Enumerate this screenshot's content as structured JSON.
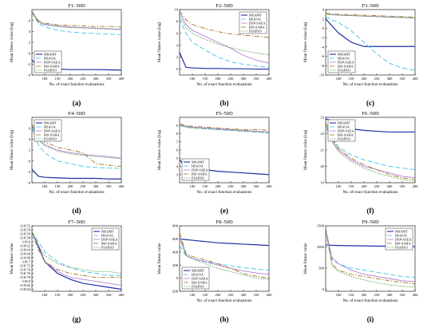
{
  "figure": {
    "letters": [
      "(a)",
      "(b)",
      "(c)",
      "(d)",
      "(e)",
      "(f)",
      "(g)",
      "(h)",
      "(i)"
    ],
    "legend_labels": [
      "MSAMT",
      "HSAOA",
      "DSP-SAEA",
      "BiS-SAHA",
      "FSAPSO"
    ],
    "series_colors": [
      "#1f2fa8",
      "#3fc2e8",
      "#b07fd8",
      "#a0781f",
      "#4a9a4a"
    ],
    "series_dash": [
      "",
      "6,3",
      "",
      "6,2,1.5,2",
      "1.5,1.5"
    ]
  },
  "chart_data": [
    {
      "type": "line",
      "title": "F1–50D",
      "xlabel": "No. of exact function evaluations",
      "ylabel": "Mean fitness value (log)",
      "xlim": [
        50,
        400
      ],
      "ylim": [
        -4,
        8
      ],
      "xticks": [
        100,
        150,
        200,
        250,
        300,
        350,
        400
      ],
      "yticks": [
        -4,
        -2,
        0,
        2,
        4,
        6
      ],
      "legend": "bottom-left",
      "x": [
        50,
        75,
        100,
        150,
        200,
        250,
        300,
        350,
        400
      ],
      "series": [
        {
          "name": "MSAMT",
          "values": [
            -1.2,
            -2.6,
            -2.8,
            -2.9,
            -3.0,
            -3.0,
            -3.0,
            -3.05,
            -3.1
          ]
        },
        {
          "name": "HSAOA",
          "values": [
            7.5,
            5.5,
            4.8,
            4.2,
            3.9,
            3.7,
            3.6,
            3.5,
            3.4
          ]
        },
        {
          "name": "DSP-SAEA",
          "values": [
            7.6,
            5.8,
            5.3,
            5.0,
            4.8,
            4.7,
            4.6,
            4.5,
            4.4
          ]
        },
        {
          "name": "BiS-SAHA",
          "values": [
            7.7,
            6.0,
            5.5,
            5.2,
            5.1,
            5.0,
            4.9,
            4.9,
            4.8
          ]
        },
        {
          "name": "FSAPSO",
          "values": [
            7.6,
            5.7,
            5.2,
            4.9,
            4.7,
            4.6,
            4.5,
            4.4,
            4.3
          ]
        }
      ]
    },
    {
      "type": "line",
      "title": "F2–50D",
      "xlabel": "No. of exact function evaluations",
      "ylabel": "Mean fitness value (log)",
      "xlim": [
        50,
        400
      ],
      "ylim": [
        -1,
        10
      ],
      "xticks": [
        100,
        150,
        200,
        250,
        300,
        350,
        400
      ],
      "yticks": [
        0,
        2,
        4,
        6,
        8,
        10
      ],
      "legend": "top-right",
      "x": [
        50,
        75,
        100,
        150,
        200,
        250,
        300,
        350,
        400
      ],
      "series": [
        {
          "name": "MSAMT",
          "values": [
            2.8,
            0.3,
            0.2,
            0.1,
            0.1,
            0.05,
            0.05,
            0.0,
            0.0
          ]
        },
        {
          "name": "HSAOA",
          "values": [
            8.5,
            6.0,
            4.5,
            3.2,
            2.0,
            1.2,
            0.8,
            0.5,
            0.3
          ]
        },
        {
          "name": "DSP-SAEA",
          "values": [
            9.5,
            7.5,
            6.5,
            5.5,
            4.5,
            3.5,
            2.3,
            1.5,
            1.0
          ]
        },
        {
          "name": "BiS-SAHA",
          "values": [
            9.8,
            8.3,
            7.5,
            6.8,
            6.3,
            5.9,
            5.7,
            5.5,
            5.3
          ]
        },
        {
          "name": "FSAPSO",
          "values": [
            9.0,
            7.0,
            6.0,
            5.0,
            4.2,
            3.6,
            3.1,
            2.7,
            2.4
          ]
        }
      ]
    },
    {
      "type": "line",
      "title": "F3–50D",
      "xlabel": "No. of exact function evaluations",
      "ylabel": "Mean fitness value (log)",
      "xlim": [
        50,
        400
      ],
      "ylim": [
        -10,
        4
      ],
      "xticks": [
        100,
        150,
        200,
        250,
        300,
        350,
        400
      ],
      "yticks": [
        -10,
        -8,
        -6,
        -4,
        -2,
        0,
        2,
        4
      ],
      "legend": "bottom-left",
      "x": [
        50,
        75,
        100,
        150,
        200,
        250,
        300,
        350,
        400
      ],
      "series": [
        {
          "name": "MSAMT",
          "values": [
            2.0,
            0.5,
            -1.0,
            -3.0,
            -3.9,
            -3.9,
            -3.9,
            -3.9,
            -3.9
          ]
        },
        {
          "name": "HSAOA",
          "values": [
            2.5,
            1.8,
            1.2,
            -0.5,
            -3.0,
            -5.5,
            -7.5,
            -8.5,
            -9.0
          ]
        },
        {
          "name": "DSP-SAEA",
          "values": [
            3.0,
            2.9,
            2.8,
            2.7,
            2.6,
            2.5,
            2.4,
            2.3,
            2.2
          ]
        },
        {
          "name": "BiS-SAHA",
          "values": [
            3.2,
            3.1,
            3.0,
            2.9,
            2.8,
            2.7,
            2.6,
            2.5,
            2.4
          ]
        },
        {
          "name": "FSAPSO",
          "values": [
            3.0,
            2.9,
            2.8,
            2.7,
            2.6,
            2.5,
            2.4,
            2.3,
            2.2
          ]
        }
      ]
    },
    {
      "type": "line",
      "title": "F4–50D",
      "xlabel": "No. of exact function evaluations",
      "ylabel": "Mean fitness value (log)",
      "xlim": [
        50,
        400
      ],
      "ylim": [
        -4,
        8
      ],
      "xticks": [
        100,
        150,
        200,
        250,
        300,
        350,
        400
      ],
      "yticks": [
        -4,
        -2,
        0,
        2,
        4,
        6
      ],
      "legend": "top-left",
      "x": [
        50,
        75,
        100,
        150,
        200,
        250,
        300,
        350,
        400
      ],
      "series": [
        {
          "name": "MSAMT",
          "values": [
            -1.5,
            -2.8,
            -3.0,
            -3.1,
            -3.2,
            -3.2,
            -3.2,
            -3.3,
            -3.3
          ]
        },
        {
          "name": "HSAOA",
          "values": [
            6.0,
            3.0,
            1.5,
            0.0,
            -0.5,
            -1.0,
            -1.2,
            -1.3,
            -1.4
          ]
        },
        {
          "name": "DSP-SAEA",
          "values": [
            6.5,
            4.0,
            3.0,
            2.0,
            1.5,
            1.2,
            1.0,
            0.8,
            0.5
          ]
        },
        {
          "name": "BiS-SAHA",
          "values": [
            6.8,
            4.5,
            3.5,
            2.5,
            2.0,
            1.5,
            -0.5,
            -0.8,
            -1.0
          ]
        },
        {
          "name": "FSAPSO",
          "values": [
            6.2,
            3.8,
            2.8,
            1.8,
            1.3,
            1.0,
            0.8,
            0.6,
            0.4
          ]
        }
      ]
    },
    {
      "type": "line",
      "title": "F5–50D",
      "xlabel": "No. of exact function evaluations",
      "ylabel": "Mean fitness value (log)",
      "xlim": [
        50,
        400
      ],
      "ylim": [
        2,
        10
      ],
      "xticks": [
        100,
        150,
        200,
        250,
        300,
        350,
        400
      ],
      "yticks": [
        3,
        4,
        5,
        6,
        7,
        8,
        9
      ],
      "legend": "bottom-left",
      "x": [
        50,
        75,
        100,
        150,
        200,
        250,
        300,
        350,
        400
      ],
      "series": [
        {
          "name": "MSAMT",
          "values": [
            4.8,
            3.9,
            3.8,
            3.6,
            3.4,
            3.3,
            3.2,
            3.1,
            3.0
          ]
        },
        {
          "name": "HSAOA",
          "values": [
            9.0,
            8.8,
            8.7,
            8.6,
            8.5,
            8.4,
            8.3,
            8.2,
            8.1
          ]
        },
        {
          "name": "DSP-SAEA",
          "values": [
            9.1,
            8.9,
            8.8,
            8.7,
            8.6,
            8.5,
            8.4,
            8.3,
            8.2
          ]
        },
        {
          "name": "BiS-SAHA",
          "values": [
            9.2,
            9.0,
            8.9,
            8.8,
            8.7,
            8.6,
            8.5,
            8.5,
            8.4
          ]
        },
        {
          "name": "FSAPSO",
          "values": [
            9.0,
            8.8,
            8.7,
            8.6,
            8.5,
            8.4,
            8.3,
            8.2,
            8.1
          ]
        }
      ]
    },
    {
      "type": "line",
      "title": "F6–50D",
      "xlabel": "No. of exact function evaluations",
      "ylabel": "Mean fitness value (log)",
      "xlim": [
        50,
        400
      ],
      "ylim": [
        19,
        23
      ],
      "xticks": [
        100,
        150,
        200,
        250,
        300,
        350,
        400
      ],
      "yticks": [
        19,
        20,
        21,
        22,
        23
      ],
      "legend": "top-left",
      "x": [
        50,
        75,
        100,
        150,
        200,
        250,
        300,
        350,
        400
      ],
      "series": [
        {
          "name": "MSAMT",
          "values": [
            22.9,
            22.8,
            22.5,
            22.3,
            22.2,
            22.15,
            22.1,
            22.1,
            22.1
          ]
        },
        {
          "name": "HSAOA",
          "values": [
            22.5,
            21.8,
            21.2,
            20.7,
            20.4,
            20.2,
            20.0,
            19.9,
            19.8
          ]
        },
        {
          "name": "DSP-SAEA",
          "values": [
            22.6,
            21.6,
            21.0,
            20.4,
            20.0,
            19.8,
            19.6,
            19.4,
            19.3
          ]
        },
        {
          "name": "BiS-SAHA",
          "values": [
            22.7,
            21.7,
            21.1,
            20.5,
            20.1,
            19.8,
            19.5,
            19.3,
            19.2
          ]
        },
        {
          "name": "FSAPSO",
          "values": [
            22.4,
            21.5,
            20.9,
            20.3,
            19.9,
            19.6,
            19.4,
            19.2,
            19.1
          ]
        }
      ]
    },
    {
      "type": "line",
      "title": "F7–50D",
      "xlabel": "",
      "ylabel": "Mean fitness value",
      "xlim": [
        50,
        400
      ],
      "ylim": [
        -118.85,
        -118.52
      ],
      "xticks": [
        100,
        150,
        200,
        250,
        300,
        350,
        400
      ],
      "yticks": [
        -118.84,
        -118.82,
        -118.8,
        -118.78,
        -118.76,
        -118.74,
        -118.72,
        -118.7,
        -118.68,
        -118.66,
        -118.64,
        -118.62,
        -118.6,
        -118.58,
        -118.56,
        -118.54,
        -118.52
      ],
      "legend": "top-right",
      "x": [
        50,
        75,
        100,
        150,
        200,
        250,
        300,
        350,
        400
      ],
      "series": [
        {
          "name": "MSAMT",
          "values": [
            -118.55,
            -118.62,
            -118.7,
            -118.76,
            -118.79,
            -118.81,
            -118.82,
            -118.83,
            -118.84
          ]
        },
        {
          "name": "HSAOA",
          "values": [
            -118.55,
            -118.6,
            -118.65,
            -118.7,
            -118.73,
            -118.75,
            -118.76,
            -118.77,
            -118.77
          ]
        },
        {
          "name": "DSP-SAEA",
          "values": [
            -118.55,
            -118.63,
            -118.7,
            -118.75,
            -118.78,
            -118.79,
            -118.8,
            -118.81,
            -118.82
          ]
        },
        {
          "name": "BiS-SAHA",
          "values": [
            -118.55,
            -118.64,
            -118.7,
            -118.74,
            -118.76,
            -118.77,
            -118.78,
            -118.78,
            -118.78
          ]
        },
        {
          "name": "FSAPSO",
          "values": [
            -118.55,
            -118.62,
            -118.67,
            -118.71,
            -118.73,
            -118.74,
            -118.75,
            -118.75,
            -118.76
          ]
        }
      ]
    },
    {
      "type": "line",
      "title": "F8–50D",
      "xlabel": "No. of exact function evaluations",
      "ylabel": "Mean fitness value",
      "xlim": [
        50,
        400
      ],
      "ylim": [
        -200,
        800
      ],
      "xticks": [
        100,
        150,
        200,
        250,
        300,
        350,
        400
      ],
      "yticks": [
        -200,
        0,
        200,
        400,
        600,
        800
      ],
      "legend": "bottom-left",
      "x": [
        50,
        75,
        100,
        150,
        200,
        250,
        300,
        350,
        400
      ],
      "series": [
        {
          "name": "MSAMT",
          "values": [
            600,
            590,
            580,
            560,
            540,
            530,
            520,
            510,
            500
          ]
        },
        {
          "name": "HSAOA",
          "values": [
            500,
            340,
            300,
            260,
            220,
            190,
            160,
            140,
            120
          ]
        },
        {
          "name": "DSP-SAEA",
          "values": [
            650,
            350,
            300,
            250,
            200,
            150,
            110,
            80,
            60
          ]
        },
        {
          "name": "BiS-SAHA",
          "values": [
            700,
            380,
            330,
            280,
            220,
            150,
            70,
            30,
            0
          ]
        },
        {
          "name": "FSAPSO",
          "values": [
            600,
            360,
            300,
            220,
            150,
            100,
            50,
            0,
            -20
          ]
        }
      ]
    },
    {
      "type": "line",
      "title": "F9–50D",
      "xlabel": "No. of exact function evaluations",
      "ylabel": "Mean fitness value",
      "xlim": [
        50,
        400
      ],
      "ylim": [
        -50,
        1500
      ],
      "xticks": [
        100,
        150,
        200,
        250,
        300,
        350,
        400
      ],
      "yticks": [
        0,
        500,
        1000,
        1500
      ],
      "legend": "top-right",
      "x": [
        50,
        75,
        100,
        150,
        200,
        250,
        300,
        350,
        400
      ],
      "series": [
        {
          "name": "MSAMT",
          "values": [
            1050,
            1040,
            1035,
            1030,
            1025,
            1020,
            1015,
            1010,
            1005
          ]
        },
        {
          "name": "HSAOA",
          "values": [
            1450,
            700,
            600,
            500,
            450,
            400,
            350,
            300,
            280
          ]
        },
        {
          "name": "DSP-SAEA",
          "values": [
            1400,
            750,
            600,
            450,
            350,
            300,
            250,
            200,
            180
          ]
        },
        {
          "name": "BiS-SAHA",
          "values": [
            1420,
            600,
            450,
            350,
            300,
            250,
            200,
            160,
            130
          ]
        },
        {
          "name": "FSAPSO",
          "values": [
            1380,
            550,
            420,
            300,
            220,
            150,
            100,
            70,
            50
          ]
        }
      ]
    }
  ]
}
